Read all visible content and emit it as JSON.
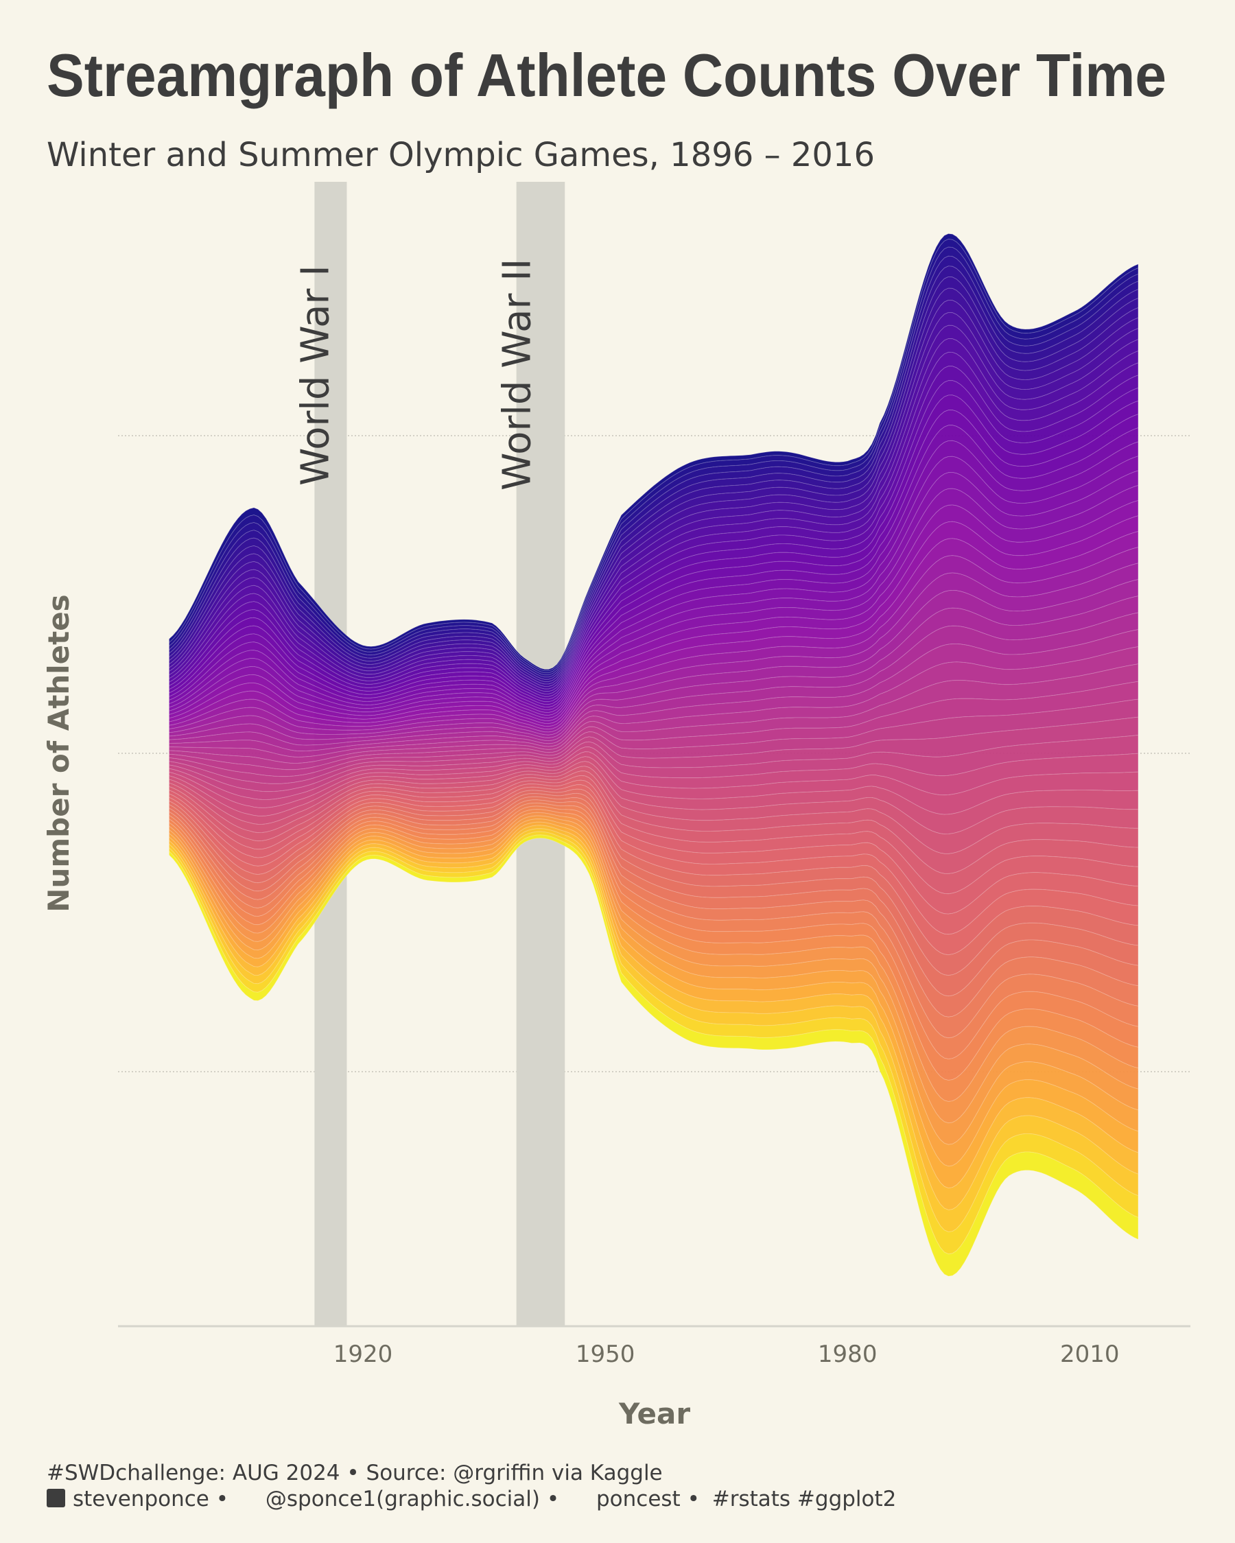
{
  "title": "Streamgraph of Athlete Counts Over Time",
  "subtitle": "Winter and Summer Olympic Games, 1896 – 2016",
  "caption": {
    "line1": "#SWDchallenge: AUG 2024 • Source: @rgriffin via Kaggle",
    "linkedin": "stevenponce",
    "mastodon": "@sponce1(graphic.social)",
    "github": "poncest",
    "tags": "#rstats #ggplot2",
    "separator": "•"
  },
  "chart_data": {
    "type": "area",
    "subtype": "streamgraph",
    "xlabel": "Year",
    "ylabel": "Number of Athletes",
    "x_ticks": [
      "1920",
      "1950",
      "1980",
      "2010"
    ],
    "xlim": [
      1896,
      2016
    ],
    "grid": "horizontal dotted",
    "palette": "plasma (yellow bottom to dark blue top)",
    "colors": {
      "bottom": "#f0f921",
      "middle": "#e16462",
      "top": "#0d0887",
      "band": "#d6d5cc"
    },
    "annotations": [
      {
        "label": "World War I",
        "start": 1914,
        "end": 1918
      },
      {
        "label": "World War II",
        "start": 1939,
        "end": 1945
      }
    ],
    "envelope_note_units": "relative (y-axis has no labels)",
    "x": [
      1896,
      1906,
      1912,
      1920,
      1928,
      1936,
      1940,
      1944,
      1948,
      1952,
      1960,
      1968,
      1972,
      1980,
      1984,
      1992,
      2000,
      2008,
      2016
    ],
    "upper": [
      0.36,
      0.77,
      0.54,
      0.34,
      0.41,
      0.41,
      0.3,
      0.28,
      0.52,
      0.75,
      0.91,
      0.94,
      0.95,
      0.92,
      1.04,
      1.63,
      1.35,
      1.39,
      1.54
    ],
    "lower": [
      -0.32,
      -0.77,
      -0.6,
      -0.34,
      -0.4,
      -0.39,
      -0.28,
      -0.28,
      -0.38,
      -0.72,
      -0.9,
      -0.93,
      -0.93,
      -0.91,
      -1.0,
      -1.64,
      -1.33,
      -1.37,
      -1.53
    ]
  }
}
